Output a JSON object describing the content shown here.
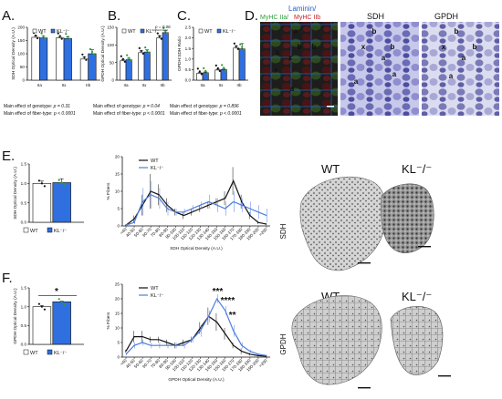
{
  "panel_letters": {
    "A": "A.",
    "B": "B.",
    "C": "C.",
    "D": "D.",
    "E": "E.",
    "F": "F."
  },
  "colors": {
    "wt": "#ffffff",
    "kl": "#2f6fe0",
    "kl_line": "#4f7de0",
    "wt_line": "#111111",
    "gray_bar": "#bfbfbf",
    "red": "#c8202a",
    "green": "#2c9e3a",
    "cyan": "#2bb3b3",
    "blue_title": "#2a5ec8"
  },
  "legend": {
    "wt": "WT",
    "kl": "KL⁻/⁻"
  },
  "chart_data": [
    {
      "id": "A",
      "type": "bar",
      "ylabel": "SDH Optical Density (A.U.)",
      "categories": [
        "IIa",
        "IIx",
        "IIb"
      ],
      "ylim": [
        0,
        200
      ],
      "yticks": [
        "0",
        "50",
        "100",
        "150",
        "200"
      ],
      "series": [
        {
          "name": "WT",
          "values": [
            162,
            160,
            80
          ],
          "errors": [
            5,
            5,
            8
          ]
        },
        {
          "name": "KL⁻/⁻",
          "values": [
            160,
            158,
            100
          ],
          "errors": [
            6,
            6,
            15
          ]
        }
      ],
      "notes": [
        {
          "text": "Main effect of genotype: ",
          "ital": "p = 0.31"
        },
        {
          "text": "Main effect of fiber-type: ",
          "ital": "p < 0.0001"
        }
      ]
    },
    {
      "id": "B",
      "type": "bar",
      "ylabel": "GPDH Optical Density (A.U.)",
      "categories": [
        "IIa",
        "IIx",
        "IIb"
      ],
      "ylim": [
        0,
        150
      ],
      "yticks": [
        "0",
        "50",
        "100",
        "150"
      ],
      "annotation": "p = 0.06",
      "series": [
        {
          "name": "WT",
          "values": [
            55,
            78,
            120
          ],
          "errors": [
            3,
            5,
            6
          ]
        },
        {
          "name": "KL⁻/⁻",
          "values": [
            58,
            80,
            135
          ],
          "errors": [
            4,
            6,
            5
          ]
        }
      ],
      "notes": [
        {
          "text": "Main effect of genotype: ",
          "ital": "p = 0.04"
        },
        {
          "text": "Main effect of fiber-type: ",
          "ital": "p < 0.0001"
        }
      ]
    },
    {
      "id": "C",
      "type": "bar",
      "ylabel": "GPDH:SDH Ratio",
      "categories": [
        "IIa",
        "IIx",
        "IIb"
      ],
      "ylim": [
        0,
        2.5
      ],
      "yticks": [
        "0.0",
        "0.5",
        "1.0",
        "1.5",
        "2.0",
        "2.5"
      ],
      "series": [
        {
          "name": "WT",
          "values": [
            0.33,
            0.48,
            1.52
          ],
          "errors": [
            0.03,
            0.04,
            0.1
          ]
        },
        {
          "name": "KL⁻/⁻",
          "values": [
            0.35,
            0.5,
            1.48
          ],
          "errors": [
            0.04,
            0.05,
            0.25
          ]
        }
      ],
      "notes": [
        {
          "text": "Main effect of genotype: ",
          "ital": "p = 0.896"
        },
        {
          "text": "Main effect of fiber-type: ",
          "ital": "p < 0.0001"
        }
      ]
    },
    {
      "id": "E1",
      "type": "bar",
      "ylabel": "SDH Optical Density (A.U.)",
      "categories": [
        "WT",
        "KL⁻/⁻"
      ],
      "ylim": [
        0,
        1.5
      ],
      "yticks": [
        "0.0",
        "0.5",
        "1.0",
        "1.5"
      ],
      "series": [
        {
          "name": "",
          "values": [
            1.0,
            1.02
          ],
          "errors": [
            0.06,
            0.1
          ]
        }
      ]
    },
    {
      "id": "E2",
      "type": "line",
      "ylabel": "% Fibers",
      "xlabel": "SDH Optical Density (A.U.)",
      "ylim": [
        0,
        20
      ],
      "yticks": [
        "0",
        "5",
        "10",
        "15",
        "20"
      ],
      "x": [
        "<40",
        "40-50",
        "50-60",
        "60-70",
        "70-80",
        "80-90",
        "90-100",
        "100-110",
        "110-120",
        "120-130",
        "130-140",
        "140-150",
        "150-160",
        "160-170",
        "170-180",
        "180-190",
        "190-200",
        ">200"
      ],
      "series": [
        {
          "name": "WT",
          "values": [
            0.2,
            2,
            6,
            10,
            9,
            6,
            4,
            3,
            4,
            5,
            6,
            7,
            8,
            13,
            7,
            3,
            1,
            0.5
          ],
          "errors": [
            0.2,
            1,
            3,
            5,
            3,
            2,
            1,
            1,
            1,
            1,
            1,
            1,
            2,
            4,
            2,
            1,
            0.5,
            0.3
          ]
        },
        {
          "name": "KL⁻/⁻",
          "values": [
            0.2,
            1,
            7,
            9,
            8,
            5,
            4,
            4,
            5,
            6,
            7,
            6,
            5,
            7,
            6,
            5,
            4,
            3
          ],
          "errors": [
            0.2,
            0.5,
            4,
            4,
            3,
            2,
            1,
            1,
            1,
            1,
            2,
            2,
            2,
            3,
            2,
            2,
            2,
            2
          ]
        }
      ]
    },
    {
      "id": "F1",
      "type": "bar",
      "ylabel": "GPDH Optical Density (A.U.)",
      "categories": [
        "WT",
        "KL⁻/⁻"
      ],
      "ylim": [
        0,
        1.5
      ],
      "yticks": [
        "0.0",
        "0.5",
        "1.0",
        "1.5"
      ],
      "significance": "*",
      "series": [
        {
          "name": "",
          "values": [
            1.0,
            1.13
          ],
          "errors": [
            0.03,
            0.02
          ]
        }
      ]
    },
    {
      "id": "F2",
      "type": "line",
      "ylabel": "% Fibers",
      "xlabel": "GPDH Optical Density (A.U.)",
      "ylim": [
        0,
        25
      ],
      "yticks": [
        "0",
        "5",
        "10",
        "15",
        "20",
        "25"
      ],
      "x": [
        "<40",
        "40-50",
        "50-60",
        "60-70",
        "70-80",
        "80-90",
        "90-100",
        "100-110",
        "110-120",
        "120-130",
        "130-140",
        "140-150",
        "150-160",
        "160-170",
        "170-180",
        "180-190",
        "190-200",
        ">200"
      ],
      "red_from_index": 14,
      "series": [
        {
          "name": "WT",
          "values": [
            2,
            7,
            7,
            6,
            6,
            5,
            4,
            5,
            6,
            10,
            14,
            12,
            8,
            4,
            2,
            1,
            0.5,
            0.3
          ],
          "errors": [
            0.5,
            2,
            2,
            1,
            1,
            1,
            1,
            1,
            1,
            2,
            3,
            3,
            2,
            1,
            1,
            0.5,
            0.3,
            0.2
          ]
        },
        {
          "name": "KL⁻/⁻",
          "values": [
            1,
            4,
            5,
            4,
            4,
            4,
            4,
            4,
            6,
            9,
            14,
            20,
            16,
            9,
            4,
            2,
            1,
            0.5
          ],
          "errors": [
            0.5,
            1,
            1,
            1,
            1,
            1,
            1,
            1,
            1,
            2,
            2,
            1.5,
            1.5,
            2,
            1,
            0.5,
            0.3,
            0.2
          ]
        }
      ],
      "significance": [
        "***",
        "****",
        "**"
      ]
    }
  ],
  "micrographs": {
    "titles": {
      "stain": "Laminin/",
      "if_green": "MyHC IIa/",
      "if_red": "MyHC IIb",
      "sdh": "SDH",
      "gpdh": "GPDH"
    },
    "labels": [
      "a",
      "x",
      "b",
      "b",
      "x",
      "x",
      "a",
      "b",
      "b",
      "x",
      "a",
      "a",
      "a",
      "b",
      "b",
      "x",
      "a",
      "a"
    ]
  },
  "sections": {
    "wt": "WT",
    "kl": "KL⁻/⁻",
    "sdh": "SDH",
    "gpdh": "GPDH"
  }
}
